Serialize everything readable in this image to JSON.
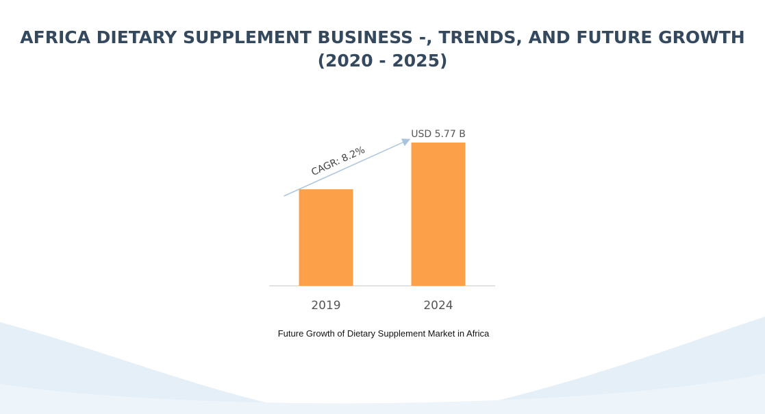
{
  "page": {
    "title_line1": "AFRICA DIETARY SUPPLEMENT BUSINESS -, TRENDS, AND FUTURE GROWTH",
    "title_line2": "(2020 - 2025)",
    "caption": "Future Growth of Dietary Supplement Market in Africa"
  },
  "chart_data": {
    "type": "bar",
    "categories": [
      "2019",
      "2024"
    ],
    "values": [
      3.89,
      5.77
    ],
    "data_labels": [
      "",
      "USD 5.77 B"
    ],
    "annotation": "CAGR: 8.2%",
    "title": "",
    "xlabel": "",
    "ylabel": "",
    "ylim": [
      0,
      5.77
    ],
    "grid": false,
    "bar_color": "#fca14a",
    "arrow_color": "#a9c4de"
  },
  "colors": {
    "title": "#34495e",
    "wave_light": "#eaf3fa",
    "wave_mid": "#dcebf6"
  }
}
